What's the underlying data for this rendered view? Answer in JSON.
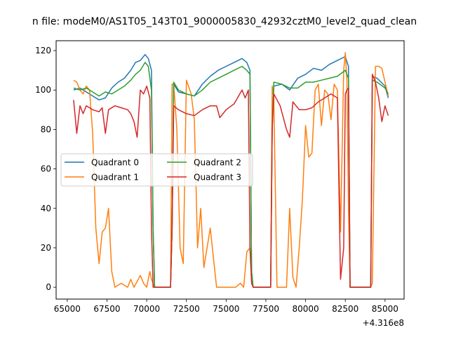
{
  "chart_data": {
    "type": "line",
    "title": "n file: modeM0/AS1T05_143T01_9000005830_42932cztM0_level2_quad_clean",
    "xlabel": "",
    "ylabel": "",
    "x_offset_label": "+4.316e8",
    "xlim": [
      64300,
      86200
    ],
    "ylim": [
      -6,
      125
    ],
    "x_ticks": [
      65000,
      67500,
      70000,
      72500,
      75000,
      77500,
      80000,
      82500,
      85000
    ],
    "x_tick_labels": [
      "65000",
      "67500",
      "70000",
      "72500",
      "75000",
      "77500",
      "80000",
      "82500",
      "85000"
    ],
    "y_ticks": [
      0,
      20,
      40,
      60,
      80,
      100,
      120
    ],
    "y_tick_labels": [
      "0",
      "20",
      "40",
      "60",
      "80",
      "100",
      "120"
    ],
    "grid": false,
    "legend_position": "center-left",
    "series": [
      {
        "name": "Quadrant 0",
        "color": "#1f77b4",
        "x": [
          65400,
          65800,
          66200,
          66600,
          67000,
          67400,
          67800,
          68200,
          68600,
          69000,
          69300,
          69600,
          69900,
          70100,
          70300,
          70400,
          70500,
          71500,
          71600,
          71700,
          72000,
          72500,
          73000,
          73500,
          74000,
          74500,
          75000,
          75500,
          76000,
          76300,
          76500,
          76600,
          76700,
          77800,
          77900,
          78000,
          78500,
          79000,
          79500,
          80000,
          80500,
          81000,
          81500,
          82000,
          82500,
          82700,
          82800,
          84100,
          84200,
          84500,
          85000,
          85200
        ],
        "y": [
          100,
          101,
          99,
          97,
          95,
          96,
          101,
          104,
          106,
          110,
          114,
          115,
          118,
          116,
          110,
          30,
          0,
          0,
          30,
          103,
          99,
          98,
          97,
          103,
          107,
          110,
          112,
          114,
          116,
          114,
          110,
          8,
          0,
          0,
          80,
          102,
          103,
          100,
          106,
          108,
          111,
          110,
          113,
          115,
          117,
          112,
          0,
          0,
          107,
          106,
          102,
          96
        ]
      },
      {
        "name": "Quadrant 1",
        "color": "#ff7f0e",
        "x": [
          65400,
          65600,
          65800,
          66000,
          66200,
          66400,
          66600,
          66800,
          67000,
          67200,
          67400,
          67600,
          67800,
          68000,
          68400,
          68800,
          69000,
          69200,
          69600,
          69800,
          70000,
          70200,
          70300,
          70400,
          70500,
          71500,
          71600,
          71700,
          71900,
          72100,
          72300,
          72500,
          72800,
          73000,
          73200,
          73400,
          73600,
          74000,
          74400,
          74800,
          75200,
          75600,
          75900,
          76100,
          76300,
          76500,
          76600,
          76700,
          77800,
          77900,
          78000,
          78200,
          78600,
          78800,
          79000,
          79200,
          79400,
          79600,
          79800,
          80000,
          80200,
          80400,
          80600,
          80800,
          81000,
          81200,
          81400,
          81600,
          81800,
          82000,
          82200,
          82400,
          82500,
          82600,
          82700,
          82800,
          84100,
          84200,
          84400,
          84600,
          84800,
          85000,
          85200
        ],
        "y": [
          105,
          104,
          100,
          98,
          102,
          100,
          78,
          30,
          12,
          28,
          30,
          40,
          8,
          0,
          2,
          0,
          4,
          0,
          6,
          2,
          0,
          8,
          4,
          2,
          0,
          0,
          103,
          103,
          80,
          20,
          12,
          105,
          98,
          85,
          20,
          40,
          10,
          30,
          0,
          0,
          0,
          0,
          2,
          0,
          18,
          20,
          5,
          0,
          0,
          102,
          96,
          0,
          0,
          0,
          40,
          5,
          0,
          20,
          45,
          82,
          66,
          68,
          100,
          103,
          82,
          100,
          98,
          85,
          103,
          100,
          28,
          110,
          119,
          105,
          40,
          0,
          0,
          2,
          112,
          112,
          111,
          104,
          97
        ]
      },
      {
        "name": "Quadrant 2",
        "color": "#2ca02c",
        "x": [
          65400,
          65800,
          66200,
          66600,
          67000,
          67400,
          67800,
          68200,
          68600,
          69000,
          69300,
          69600,
          69900,
          70100,
          70300,
          70400,
          70500,
          71500,
          71600,
          71700,
          72000,
          72500,
          73000,
          73500,
          74000,
          74500,
          75000,
          75500,
          76000,
          76300,
          76500,
          76600,
          76700,
          77800,
          77900,
          78000,
          78500,
          79000,
          79500,
          80000,
          80500,
          81000,
          81500,
          82000,
          82500,
          82700,
          82800,
          84100,
          84200,
          84500,
          85000,
          85200
        ],
        "y": [
          101,
          100,
          101,
          99,
          97,
          99,
          98,
          100,
          102,
          105,
          108,
          110,
          114,
          112,
          100,
          30,
          0,
          0,
          30,
          104,
          100,
          98,
          97,
          100,
          104,
          106,
          108,
          110,
          112,
          110,
          108,
          8,
          0,
          0,
          80,
          104,
          103,
          101,
          101,
          104,
          104,
          105,
          106,
          107,
          110,
          106,
          0,
          0,
          105,
          104,
          101,
          98
        ]
      },
      {
        "name": "Quadrant 3",
        "color": "#d62728",
        "x": [
          65400,
          65600,
          65800,
          66000,
          66200,
          66600,
          67000,
          67200,
          67400,
          67600,
          68000,
          68400,
          68800,
          69000,
          69200,
          69400,
          69600,
          69800,
          70000,
          70200,
          70300,
          70400,
          70500,
          71500,
          71600,
          71700,
          72000,
          72500,
          73000,
          73500,
          74000,
          74400,
          74600,
          75000,
          75500,
          76000,
          76200,
          76400,
          76500,
          76600,
          76700,
          77800,
          77900,
          78000,
          78400,
          78800,
          79000,
          79200,
          79600,
          80000,
          80400,
          80800,
          81200,
          81600,
          82000,
          82200,
          82400,
          82500,
          82600,
          82700,
          82800,
          84100,
          84200,
          84400,
          84600,
          84800,
          85000,
          85200
        ],
        "y": [
          95,
          78,
          92,
          88,
          92,
          90,
          89,
          91,
          78,
          90,
          92,
          91,
          90,
          88,
          84,
          76,
          100,
          98,
          102,
          96,
          30,
          0,
          0,
          0,
          30,
          92,
          90,
          88,
          87,
          90,
          92,
          92,
          86,
          90,
          93,
          100,
          96,
          100,
          20,
          2,
          0,
          0,
          80,
          98,
          92,
          80,
          76,
          94,
          90,
          90,
          91,
          94,
          96,
          98,
          96,
          4,
          20,
          98,
          100,
          101,
          0,
          0,
          108,
          104,
          96,
          84,
          92,
          87
        ]
      }
    ]
  }
}
